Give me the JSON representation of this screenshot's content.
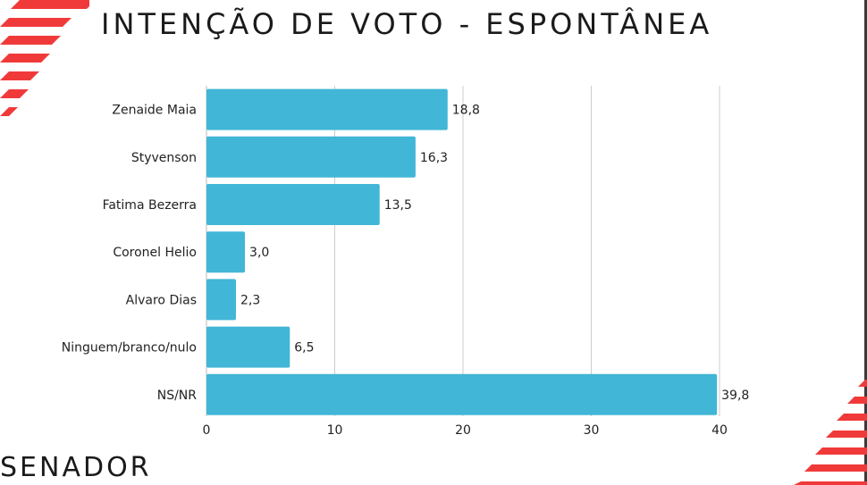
{
  "title": "INTENÇÃO DE VOTO - ESPONTÂNEA",
  "footer_label": "SENADOR",
  "colors": {
    "bar": "#42b6d6",
    "grid": "#cccccc",
    "stripe": "#f03a3a"
  },
  "chart_data": {
    "type": "bar",
    "orientation": "horizontal",
    "categories": [
      "Zenaide Maia",
      "Styvenson",
      "Fatima Bezerra",
      "Coronel Helio",
      "Alvaro Dias",
      "Ninguem/branco/nulo",
      "NS/NR"
    ],
    "values": [
      18.8,
      16.3,
      13.5,
      3.0,
      2.3,
      6.5,
      39.8
    ],
    "value_labels": [
      "18,8",
      "16,3",
      "13,5",
      "3,0",
      "2,3",
      "6,5",
      "39,8"
    ],
    "xticks": [
      0,
      10,
      20,
      30,
      40
    ],
    "xlim": [
      0,
      40
    ],
    "grid": true,
    "legend": "none"
  }
}
